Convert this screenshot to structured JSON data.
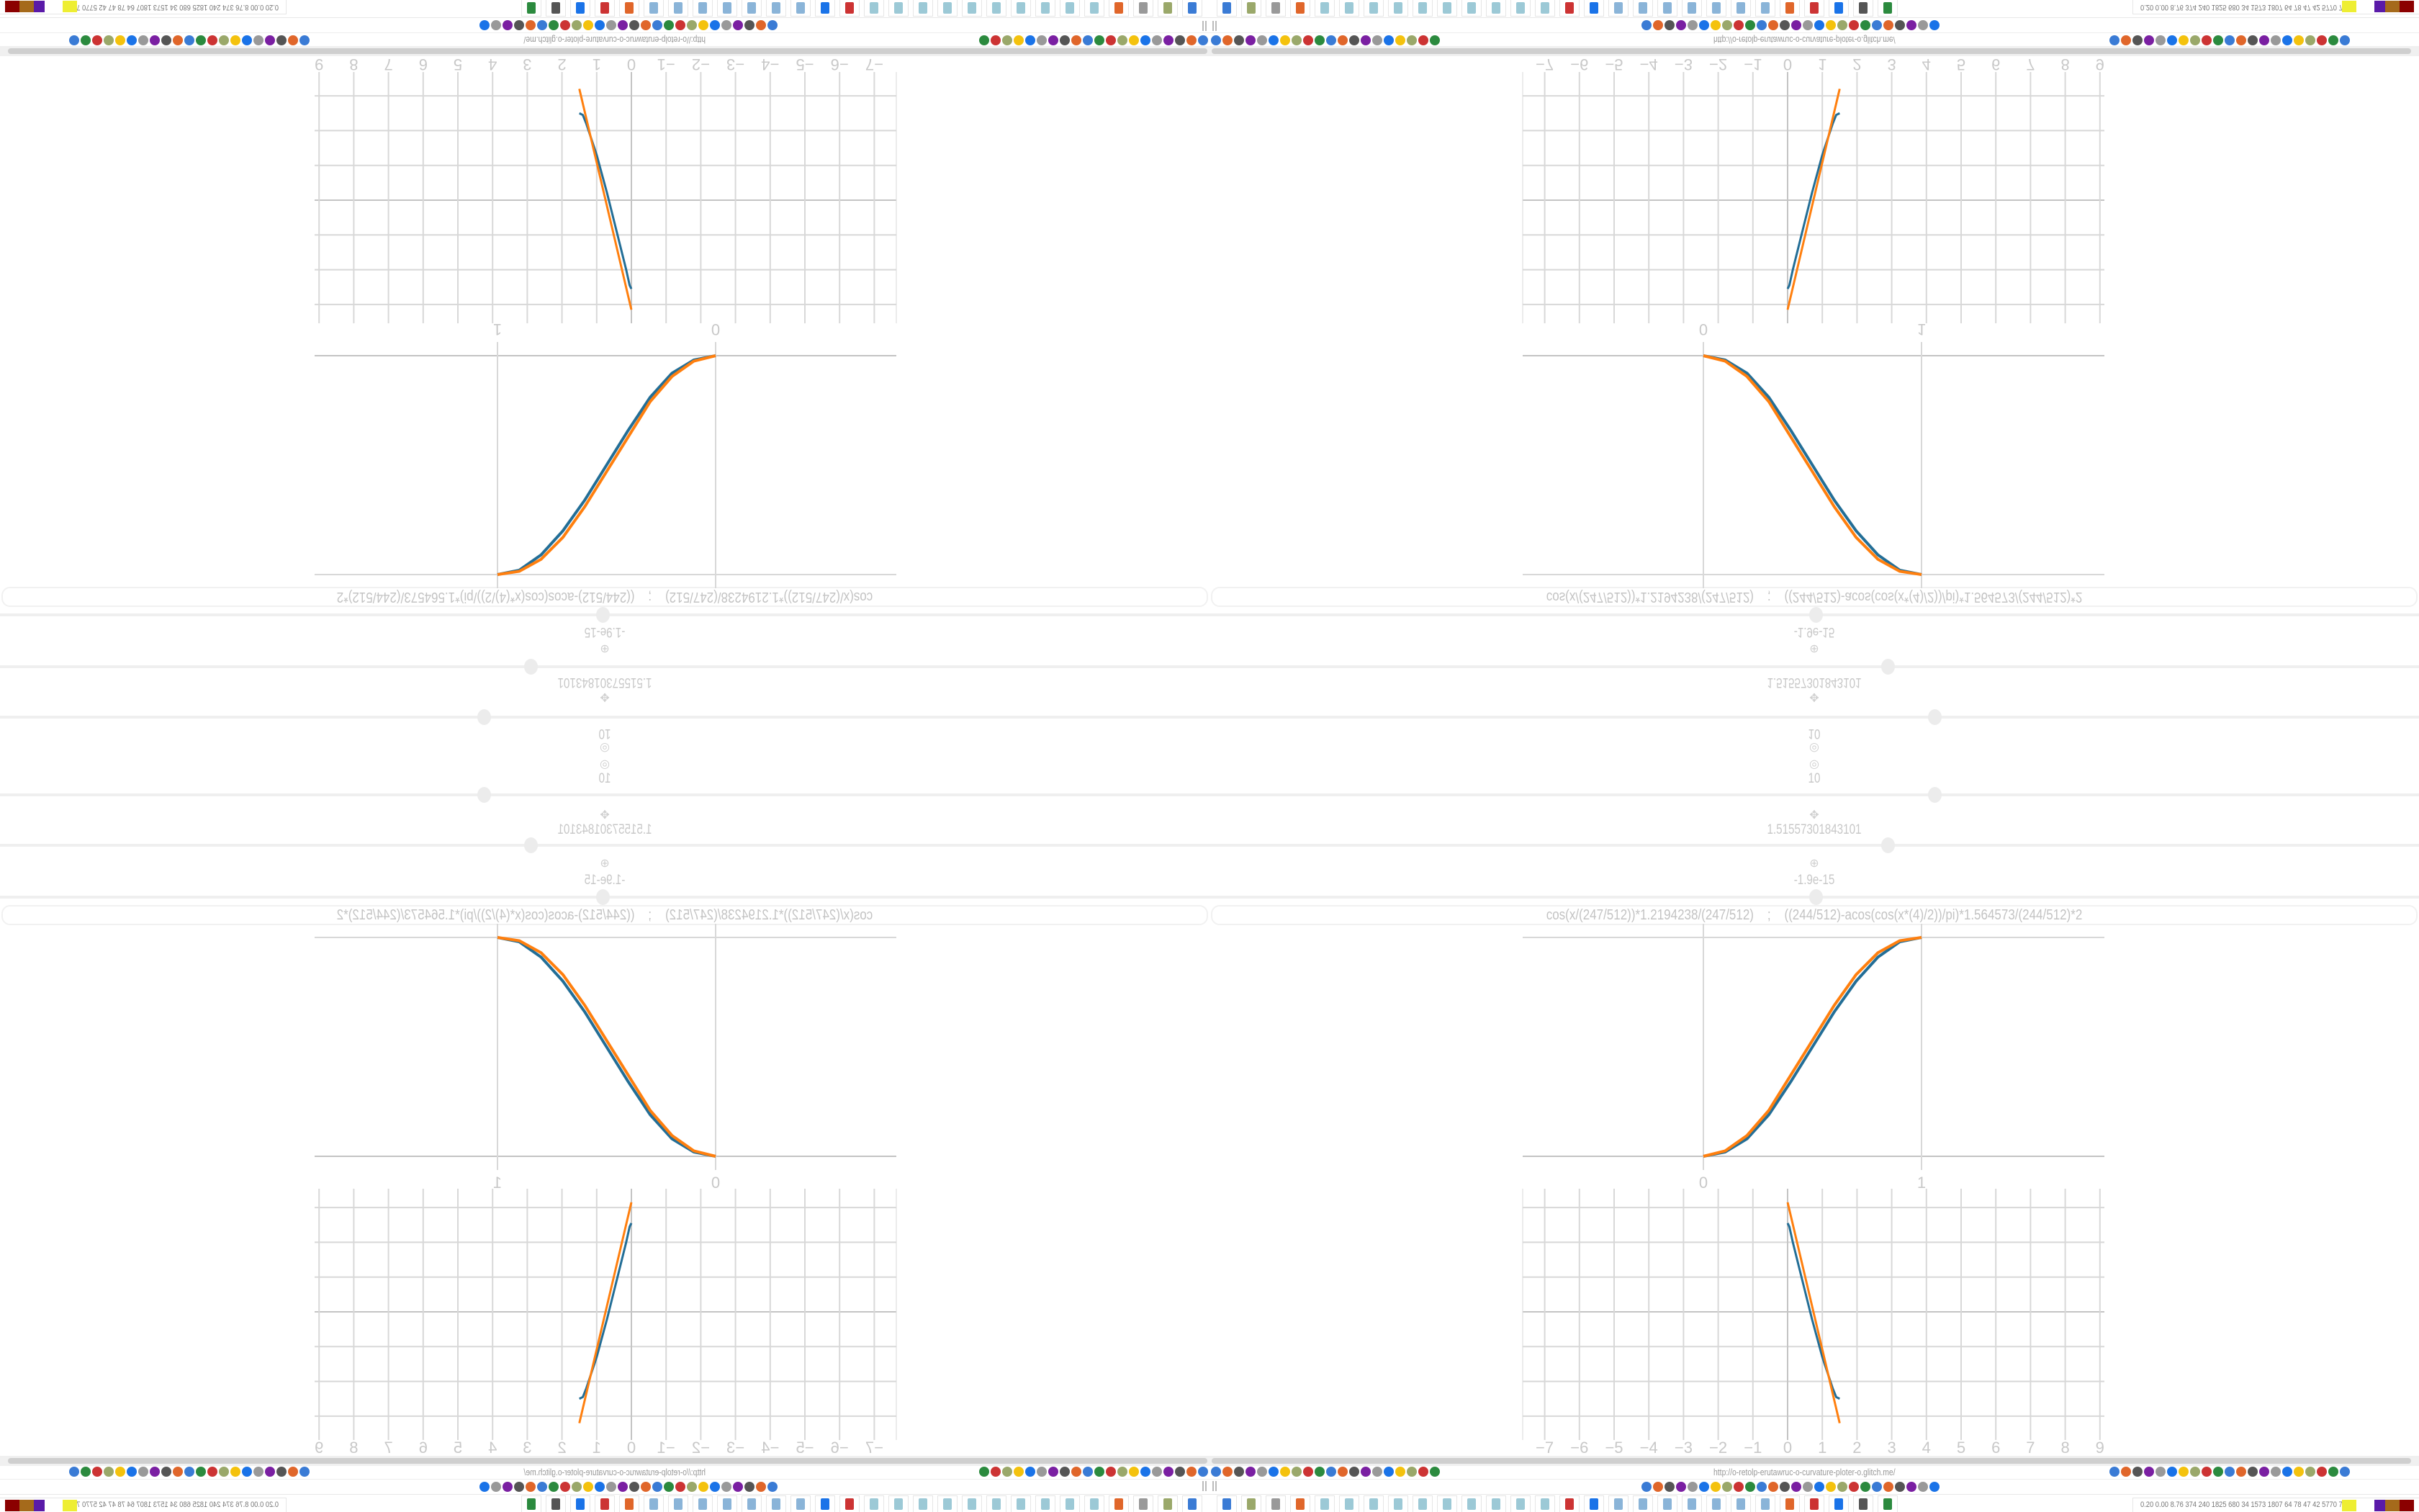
{
  "controls": {
    "top_value": "10",
    "slider_a_value": "1.51557301843101",
    "slider_b_value": "-1.9e-15",
    "small_icon": "◎",
    "step_icon": "✥",
    "reset_icon": "⊕"
  },
  "formula_input": {
    "value": "cos(x/(247/512))*1.2194238/(247/512)    ;    ((244/512)-acos(cos(x*(4)/2))/pi)*1.564573/(244/512)*2"
  },
  "browser": {
    "url": "http://o-retolp-erutawruc-o-curvature-ploter-o.glitch.me/",
    "left_icons": [
      "filter-icon",
      "extension-icon",
      "globe-icon",
      "globe-icon",
      "headphones-icon",
      "headphones-icon",
      "globe-icon",
      "wrench-icon",
      "firefox-icon",
      "gear-icon",
      "globe-icon",
      "dot-icon",
      "circle-icon",
      "dot-icon",
      "circle-icon",
      "dot-icon",
      "folder-icon",
      "back-icon",
      "shield-icon",
      "lock-icon"
    ],
    "right_icons": [
      "translate-icon",
      "star-icon",
      "forward-icon",
      "reload-icon",
      "download-icon",
      "pen-icon",
      "translate-icon",
      "mouse-icon",
      "gear-icon",
      "plus-icon",
      "upload-icon",
      "record-icon",
      "trash-icon",
      "globe-icon",
      "battery-icon",
      "ublock-icon",
      "shield-icon",
      "globe-icon",
      "puzzle-icon",
      "wrench-icon",
      "gear-icon"
    ],
    "bookmark_icons": [
      "disc-icon",
      "speaker-icon",
      "cc-icon",
      "speaker-icon",
      "speaker-icon",
      "speaker-icon",
      "cloud-icon",
      "wikipedia-icon",
      "chart-icon",
      "cloud-icon",
      "archive-icon",
      "translate-icon",
      "google-icon",
      "google-icon",
      "flower-icon",
      "google-icon",
      "drop-icon",
      "google-icon",
      "google-icon",
      "yandex-icon",
      "grid-icon",
      "image-icon",
      "sun-icon",
      "cc-icon",
      "image-icon",
      "hourglass-icon"
    ]
  },
  "taskbar": {
    "apps": [
      "monitor-app",
      "terminal-app",
      "firefox-app",
      "floppy-app",
      "notepad-app",
      "notepad-app",
      "notepad-app",
      "notepad-app",
      "notepad-app",
      "notepad-app",
      "notepad-app",
      "notepad-app",
      "notepad-app",
      "notepad-app",
      "inkscape-app",
      "settings-app",
      "calculator-app",
      "calculator-app",
      "calculator-app",
      "calculator-app",
      "calculator-app",
      "calculator-app",
      "calculator-app",
      "game-app",
      "document-app",
      "document-app",
      "document-app",
      "blank-app"
    ],
    "tray_text": "0.20 0.00 8.76 374 240 1825 680  34 1573 1807  64   78   47   42  5770 7598"
  },
  "colors": {
    "series_blue": "#236e96",
    "series_orange": "#ff7f0e",
    "grid": "#d8d8d8",
    "axis": "#c4c4c4",
    "label": "#c8c8c8"
  },
  "chart_data": [
    {
      "type": "line",
      "xlim": [
        -0.83,
        1.84
      ],
      "ylim": [
        0,
        1
      ],
      "x_ticks": [
        "0",
        "1"
      ],
      "grid": false,
      "x": [
        0,
        0.1,
        0.2,
        0.3,
        0.4,
        0.5,
        0.6,
        0.7,
        0.8,
        0.9,
        1
      ],
      "series": [
        {
          "color": "#236e96",
          "values": [
            0,
            0.02,
            0.08,
            0.19,
            0.34,
            0.5,
            0.66,
            0.8,
            0.91,
            0.98,
            1
          ]
        },
        {
          "color": "#ff7f0e",
          "values": [
            0,
            0.025,
            0.095,
            0.21,
            0.37,
            0.53,
            0.69,
            0.83,
            0.93,
            0.985,
            1
          ]
        }
      ]
    },
    {
      "type": "line",
      "xlim": [
        -7.7,
        9.1
      ],
      "ylim": [
        -3.6,
        3.6
      ],
      "x_ticks": [
        "−7",
        "−6",
        "−5",
        "−4",
        "−3",
        "−2",
        "−1",
        "0",
        "1",
        "2",
        "3",
        "4",
        "5",
        "6",
        "7",
        "8",
        "9"
      ],
      "grid": true,
      "series": [
        {
          "color": "#236e96",
          "x": [
            0,
            0.05,
            0.15,
            0.4,
            0.7,
            1.0,
            1.3,
            1.4,
            1.5
          ],
          "values": [
            2.55,
            2.45,
            2.0,
            1.0,
            -0.2,
            -1.3,
            -2.2,
            -2.45,
            -2.5
          ]
        },
        {
          "color": "#ff7f0e",
          "x": [
            0,
            1.5
          ],
          "values": [
            3.15,
            -3.2
          ]
        }
      ]
    }
  ]
}
